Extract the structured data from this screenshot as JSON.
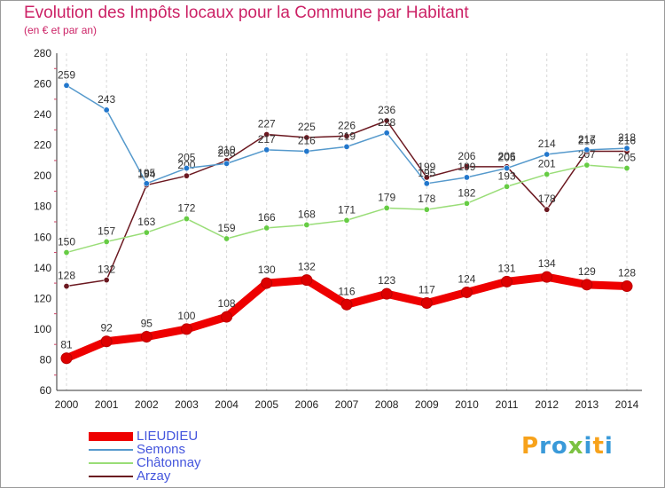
{
  "title": "Evolution des Impôts locaux pour la Commune par Habitant",
  "subtitle": "(en € et par an)",
  "logo": {
    "text": "Proxiti",
    "letters": [
      "P",
      "r",
      "o",
      "x",
      "i",
      "t",
      "i"
    ],
    "colors": [
      "#f7a21b",
      "#3a9ad9",
      "#3a9ad9",
      "#7cc242",
      "#3a9ad9",
      "#f7a21b",
      "#3a9ad9"
    ]
  },
  "chart_data": {
    "type": "line",
    "title": "Evolution des Impôts locaux pour la Commune par Habitant",
    "subtitle": "(en € et par an)",
    "x": [
      "2000",
      "2001",
      "2002",
      "2003",
      "2004",
      "2005",
      "2006",
      "2007",
      "2008",
      "2009",
      "2010",
      "2011",
      "2012",
      "2013",
      "2014"
    ],
    "y_ticks": [
      "60",
      "80",
      "100",
      "120",
      "140",
      "160",
      "180",
      "200",
      "220",
      "240",
      "260",
      "280"
    ],
    "ylim": [
      60,
      280
    ],
    "grid": "vertical dashed",
    "legend_position": "bottom-left",
    "series": [
      {
        "name": "Arzay",
        "color": "#6b1820",
        "marker": "#6b1820",
        "values": [
          128,
          132,
          194,
          200,
          210,
          227,
          225,
          226,
          236,
          199,
          206,
          206,
          178,
          216,
          216
        ],
        "labels": [
          "128",
          "132",
          "194",
          "200",
          "210",
          "227",
          "225",
          "226",
          "236",
          "199",
          "206",
          "206",
          "178",
          "216",
          "216"
        ]
      },
      {
        "name": "Châtonnay",
        "color": "#99dd77",
        "marker": "#66cc44",
        "values": [
          150,
          157,
          163,
          172,
          159,
          166,
          168,
          171,
          179,
          178,
          182,
          193,
          201,
          207,
          205
        ],
        "labels": [
          "150",
          "157",
          "163",
          "172",
          "159",
          "166",
          "168",
          "171",
          "179",
          "178",
          "182",
          "193",
          "201",
          "207",
          "205"
        ]
      },
      {
        "name": "Semons",
        "color": "#5599cc",
        "marker": "#2277cc",
        "values": [
          259,
          243,
          195,
          205,
          208,
          217,
          216,
          219,
          228,
          195,
          199,
          205,
          214,
          217,
          218
        ],
        "labels": [
          "259",
          "243",
          "195",
          "205",
          "208",
          "217",
          "216",
          "219",
          "228",
          "195",
          "199",
          "205",
          "214",
          "217",
          "218"
        ]
      },
      {
        "name": "LIEUDIEU",
        "color": "#ee0000",
        "marker": "#dd0000",
        "values": [
          81,
          92,
          95,
          100,
          108,
          130,
          132,
          116,
          123,
          117,
          124,
          131,
          134,
          129,
          128
        ],
        "labels": [
          "81",
          "92",
          "95",
          "100",
          "108",
          "130",
          "132",
          "116",
          "123",
          "117",
          "124",
          "131",
          "134",
          "129",
          "128"
        ]
      }
    ],
    "legend": [
      {
        "name": "LIEUDIEU",
        "color": "#ee0000",
        "width": 10
      },
      {
        "name": "Semons",
        "color": "#5599cc",
        "width": 2
      },
      {
        "name": "Châtonnay",
        "color": "#99dd77",
        "width": 2
      },
      {
        "name": "Arzay",
        "color": "#6b1820",
        "width": 2
      }
    ]
  }
}
